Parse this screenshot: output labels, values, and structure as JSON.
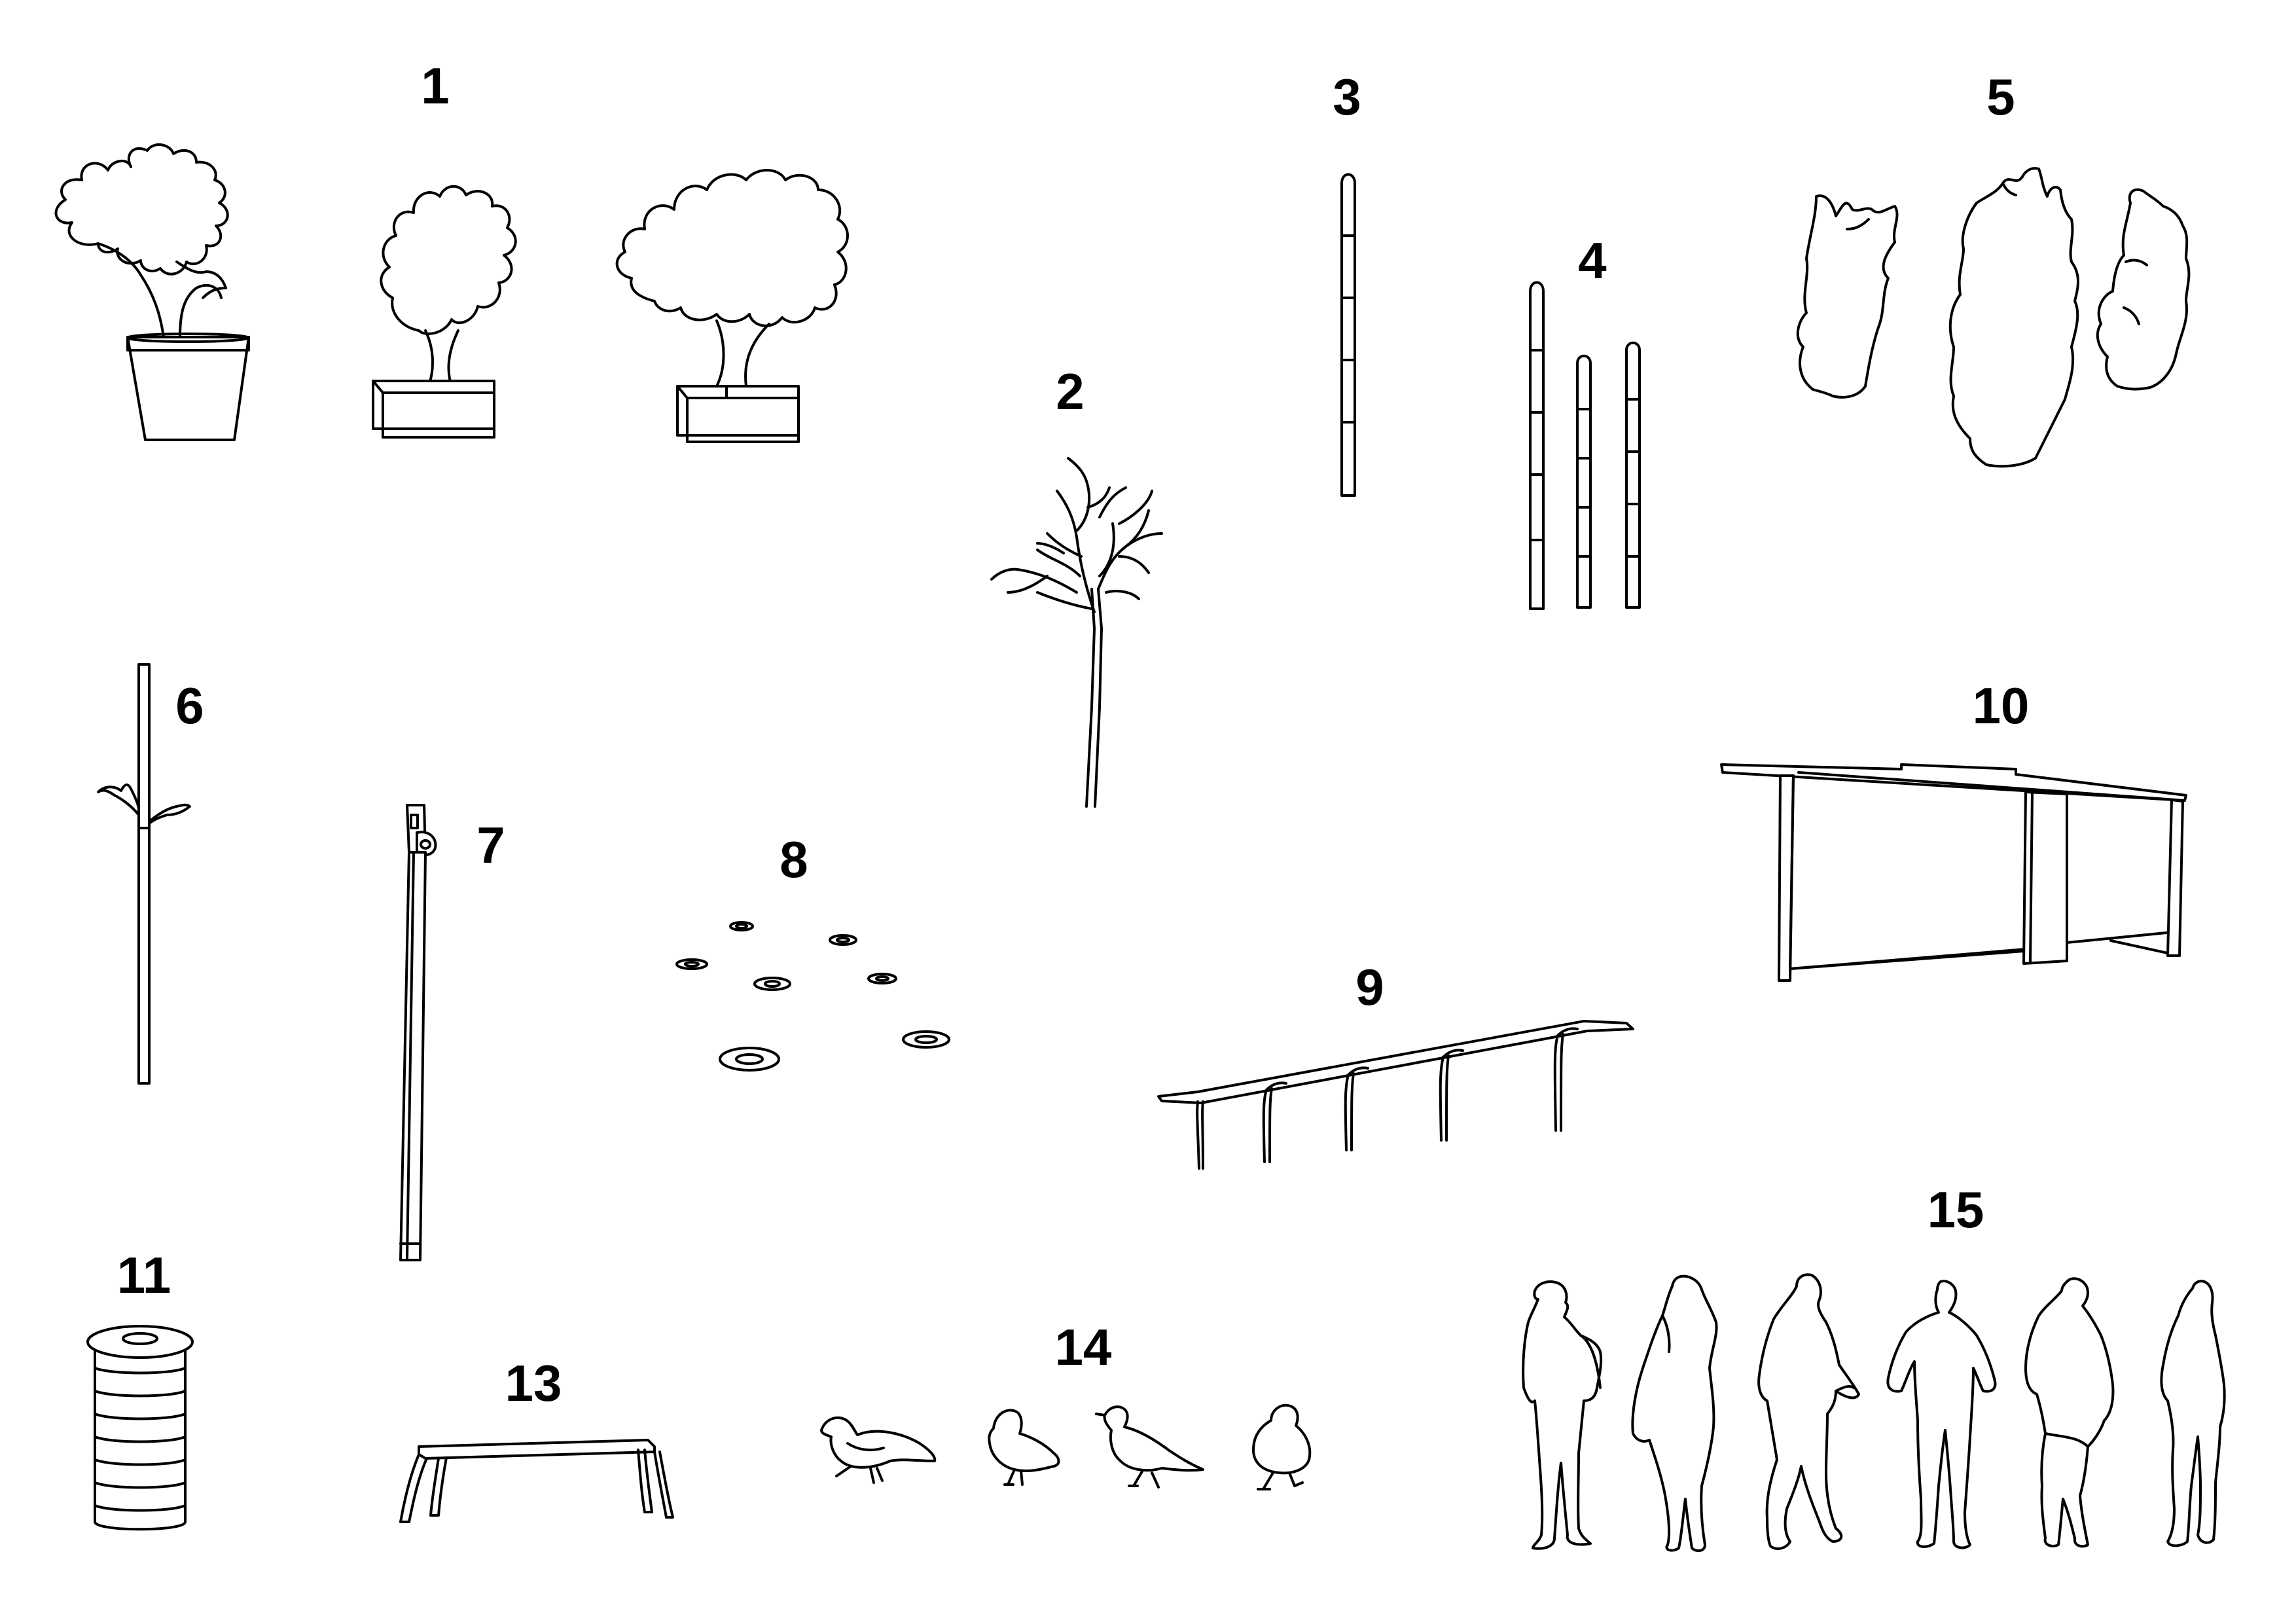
{
  "labels": {
    "potted_trees": "1",
    "bare_tree": "2",
    "single_pole": "3",
    "pole_group": "4",
    "shrubs": "5",
    "sapling_post": "6",
    "lamp_post": "7",
    "ground_lights": "8",
    "bike_rack": "9",
    "shelter": "10",
    "litter_bin": "11",
    "bench": "13",
    "pigeons": "14",
    "people": "15"
  },
  "colors": {
    "background": "#ffffff",
    "line": "#000000"
  }
}
